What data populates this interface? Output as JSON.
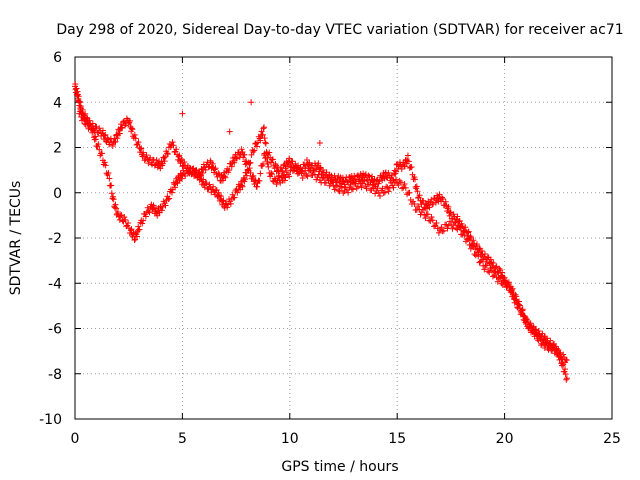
{
  "chart_data": {
    "type": "scatter",
    "title": "Day 298 of 2020, Sidereal Day-to-day VTEC variation (SDTVAR) for receiver ac71",
    "xlabel": "GPS time / hours",
    "ylabel": "SDTVAR / TECUs",
    "xlim": [
      0,
      25
    ],
    "ylim": [
      -10,
      6
    ],
    "xticks": [
      0,
      5,
      10,
      15,
      20,
      25
    ],
    "yticks": [
      -10,
      -8,
      -6,
      -4,
      -2,
      0,
      2,
      4,
      6
    ],
    "grid": true,
    "marker": "+",
    "series": [
      {
        "name": "SDTVAR",
        "color": "#ff0000",
        "x": [
          0.0,
          0.1,
          0.2,
          0.3,
          0.5,
          0.7,
          1.0,
          1.3,
          1.5,
          1.8,
          2.0,
          2.2,
          2.5,
          2.7,
          3.0,
          3.2,
          3.5,
          3.8,
          4.0,
          4.2,
          4.5,
          4.8,
          5.0,
          5.3,
          5.5,
          5.8,
          6.0,
          6.3,
          6.5,
          6.8,
          7.0,
          7.3,
          7.5,
          7.8,
          8.0,
          8.3,
          8.5,
          8.8,
          9.0,
          9.3,
          9.5,
          9.8,
          10.0,
          10.3,
          10.5,
          10.8,
          11.0,
          11.3,
          11.5,
          11.8,
          12.0,
          12.3,
          12.5,
          12.8,
          13.0,
          13.3,
          13.5,
          13.8,
          14.0,
          14.3,
          14.5,
          14.8,
          15.0,
          15.3,
          15.5,
          15.8,
          16.0,
          16.3,
          16.5,
          16.8,
          17.0,
          17.3,
          17.5,
          17.8,
          18.0,
          18.3,
          18.5,
          18.8,
          19.0,
          19.3,
          19.5,
          19.8,
          20.0,
          20.3,
          20.5,
          20.8,
          21.0,
          21.3,
          21.5,
          21.8,
          22.0,
          22.3,
          22.5,
          22.7,
          22.9
        ],
        "y": [
          4.7,
          4.4,
          4.0,
          3.6,
          3.3,
          3.0,
          2.8,
          2.6,
          2.3,
          2.2,
          2.6,
          3.0,
          3.2,
          2.6,
          2.0,
          1.6,
          1.4,
          1.3,
          1.2,
          1.6,
          2.2,
          1.6,
          1.3,
          1.0,
          0.9,
          0.8,
          1.1,
          1.3,
          1.0,
          0.6,
          0.8,
          1.3,
          1.6,
          1.8,
          1.2,
          0.6,
          0.3,
          1.6,
          1.7,
          1.2,
          0.9,
          1.2,
          1.4,
          1.1,
          1.0,
          1.3,
          1.1,
          1.2,
          0.9,
          0.7,
          0.6,
          0.6,
          0.5,
          0.6,
          0.6,
          0.7,
          0.7,
          0.6,
          0.4,
          0.7,
          0.8,
          0.6,
          1.2,
          1.2,
          1.5,
          0.6,
          -0.2,
          -0.6,
          -0.5,
          -0.3,
          -0.2,
          -0.6,
          -1.0,
          -1.2,
          -1.5,
          -1.8,
          -2.2,
          -2.5,
          -2.8,
          -3.0,
          -3.3,
          -3.5,
          -3.9,
          -4.3,
          -4.8,
          -5.3,
          -5.7,
          -6.0,
          -6.2,
          -6.4,
          -6.6,
          -6.8,
          -7.1,
          -7.6,
          -8.2
        ],
        "x2": [
          0.2,
          0.5,
          0.8,
          1.0,
          1.3,
          1.6,
          1.8,
          2.0,
          2.3,
          2.6,
          2.8,
          3.0,
          3.3,
          3.6,
          3.8,
          4.0,
          4.3,
          4.6,
          4.8,
          5.0,
          5.3,
          5.6,
          5.8,
          6.0,
          6.3,
          6.6,
          6.8,
          7.0,
          7.3,
          7.6,
          7.8,
          8.0,
          8.3,
          8.6,
          8.8,
          9.0,
          9.3,
          9.6,
          9.8,
          10.2,
          10.6,
          11.0,
          11.4,
          11.8,
          12.2,
          12.6,
          13.0,
          13.4,
          13.8,
          14.2,
          14.6,
          15.0,
          15.4,
          15.8,
          16.2,
          16.6,
          17.0,
          17.4,
          17.8,
          18.2,
          18.6,
          19.0,
          19.4,
          19.8,
          20.2,
          20.5,
          20.8,
          21.1,
          21.4,
          21.7,
          22.0,
          22.3,
          22.6,
          22.9
        ],
        "y2": [
          3.5,
          3.1,
          2.8,
          2.2,
          1.5,
          0.6,
          -0.4,
          -1.0,
          -1.2,
          -1.7,
          -2.0,
          -1.5,
          -0.9,
          -0.6,
          -0.9,
          -0.7,
          -0.3,
          0.3,
          0.6,
          0.8,
          1.0,
          0.9,
          0.7,
          0.4,
          0.2,
          0.0,
          -0.3,
          -0.6,
          -0.3,
          0.2,
          0.4,
          0.9,
          1.9,
          2.4,
          2.8,
          1.0,
          0.5,
          0.6,
          0.7,
          1.1,
          0.8,
          0.9,
          0.6,
          0.5,
          0.2,
          0.1,
          0.3,
          0.4,
          0.2,
          0.0,
          0.2,
          0.5,
          0.2,
          -0.6,
          -0.9,
          -1.2,
          -1.7,
          -1.4,
          -1.5,
          -2.0,
          -2.6,
          -3.2,
          -3.5,
          -3.9,
          -4.1,
          -4.6,
          -5.2,
          -5.9,
          -6.2,
          -6.6,
          -6.8,
          -6.9,
          -7.2,
          -7.4
        ],
        "outliers_x": [
          8.2,
          5.0,
          7.2,
          11.4
        ],
        "outliers_y": [
          4.0,
          3.5,
          2.7,
          2.2
        ]
      }
    ]
  }
}
